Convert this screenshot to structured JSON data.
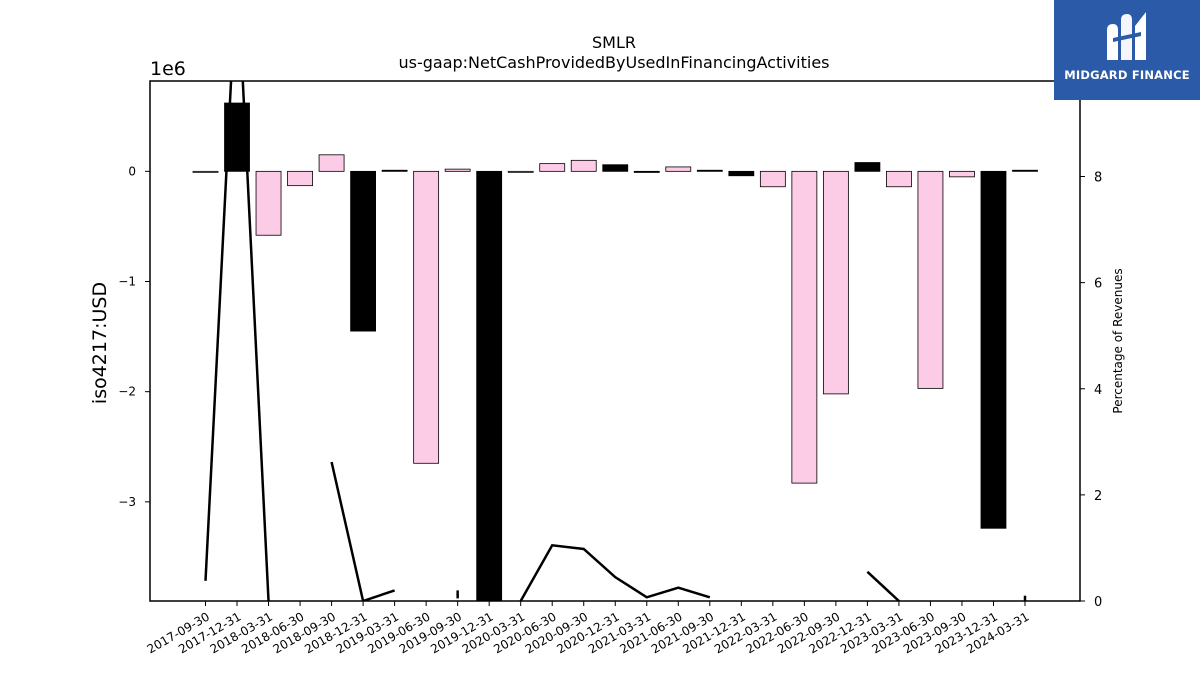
{
  "chart_data": {
    "type": "bar",
    "title": "SMLR",
    "subtitle": "us-gaap:NetCashProvidedByUsedInFinancingActivities",
    "ylabel": "iso4217:USD",
    "y_offset_label": "1e6",
    "y2label": "Percentage of Revenues",
    "ylim": [
      -3.9,
      0.82
    ],
    "y2lim": [
      0,
      9.8
    ],
    "yticks": [
      0,
      -1,
      -2,
      -3
    ],
    "ytick_labels": [
      "0",
      "−1",
      "−2",
      "−3"
    ],
    "y2ticks": [
      0,
      2,
      4,
      6,
      8
    ],
    "y2tick_labels": [
      "0",
      "2",
      "4",
      "6",
      "8"
    ],
    "categories": [
      "2017-09-30",
      "2017-12-31",
      "2018-03-31",
      "2018-06-30",
      "2018-09-30",
      "2018-12-31",
      "2019-03-31",
      "2019-06-30",
      "2019-09-30",
      "2019-12-31",
      "2020-03-31",
      "2020-06-30",
      "2020-09-30",
      "2020-12-31",
      "2021-03-31",
      "2021-06-30",
      "2021-09-30",
      "2021-12-31",
      "2022-03-31",
      "2022-06-30",
      "2022-09-30",
      "2022-12-31",
      "2023-03-31",
      "2023-06-30",
      "2023-09-30",
      "2023-12-31",
      "2024-03-31"
    ],
    "values": [
      0.0,
      0.62,
      -0.58,
      -0.13,
      0.15,
      -1.45,
      0.01,
      -2.65,
      0.02,
      -3.95,
      0.0,
      0.07,
      0.1,
      0.06,
      -0.01,
      0.04,
      0.01,
      -0.04,
      -0.14,
      -2.83,
      -2.02,
      0.08,
      -0.14,
      -1.97,
      -0.05,
      -3.24,
      0.01
    ],
    "bar_fill": [
      "#ffffff",
      "#000000",
      "#fccbe6",
      "#fccbe6",
      "#fccbe6",
      "#000000",
      "#000000",
      "#fccbe6",
      "#fccbe6",
      "#000000",
      "#ffffff",
      "#fccbe6",
      "#fccbe6",
      "#000000",
      "#000000",
      "#fccbe6",
      "#000000",
      "#000000",
      "#fccbe6",
      "#fccbe6",
      "#fccbe6",
      "#000000",
      "#fccbe6",
      "#fccbe6",
      "#fccbe6",
      "#000000",
      "#000000"
    ],
    "line_series": {
      "values": [
        0.38,
        12.0,
        0.0,
        null,
        2.62,
        0.0,
        0.2,
        null,
        0.2,
        null,
        0.0,
        1.05,
        0.98,
        0.45,
        0.07,
        0.25,
        0.07,
        null,
        null,
        null,
        null,
        0.55,
        0.0,
        null,
        null,
        null,
        0.1
      ],
      "color": "#000000"
    },
    "grid": false
  },
  "logo": {
    "text": "MIDGARD FINANCE",
    "bg": "#2b5aa8"
  }
}
